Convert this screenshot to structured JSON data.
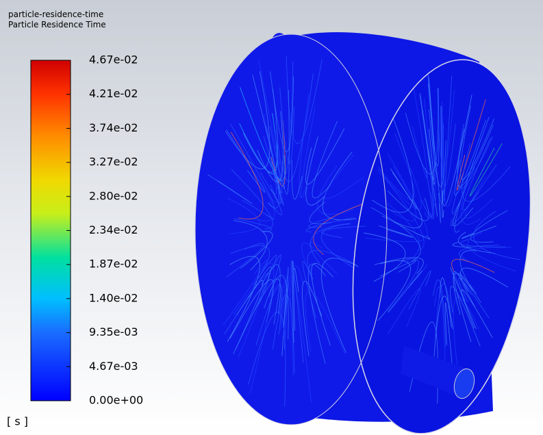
{
  "header": {
    "variable": "particle-residence-time",
    "title": "Particle Residence Time"
  },
  "colorbar": {
    "ticks": [
      "4.67e-02",
      "4.21e-02",
      "3.74e-02",
      "3.27e-02",
      "2.80e-02",
      "2.34e-02",
      "1.87e-02",
      "1.40e-02",
      "9.35e-03",
      "4.67e-03",
      "0.00e+00"
    ],
    "unit": "[ s ]"
  }
}
